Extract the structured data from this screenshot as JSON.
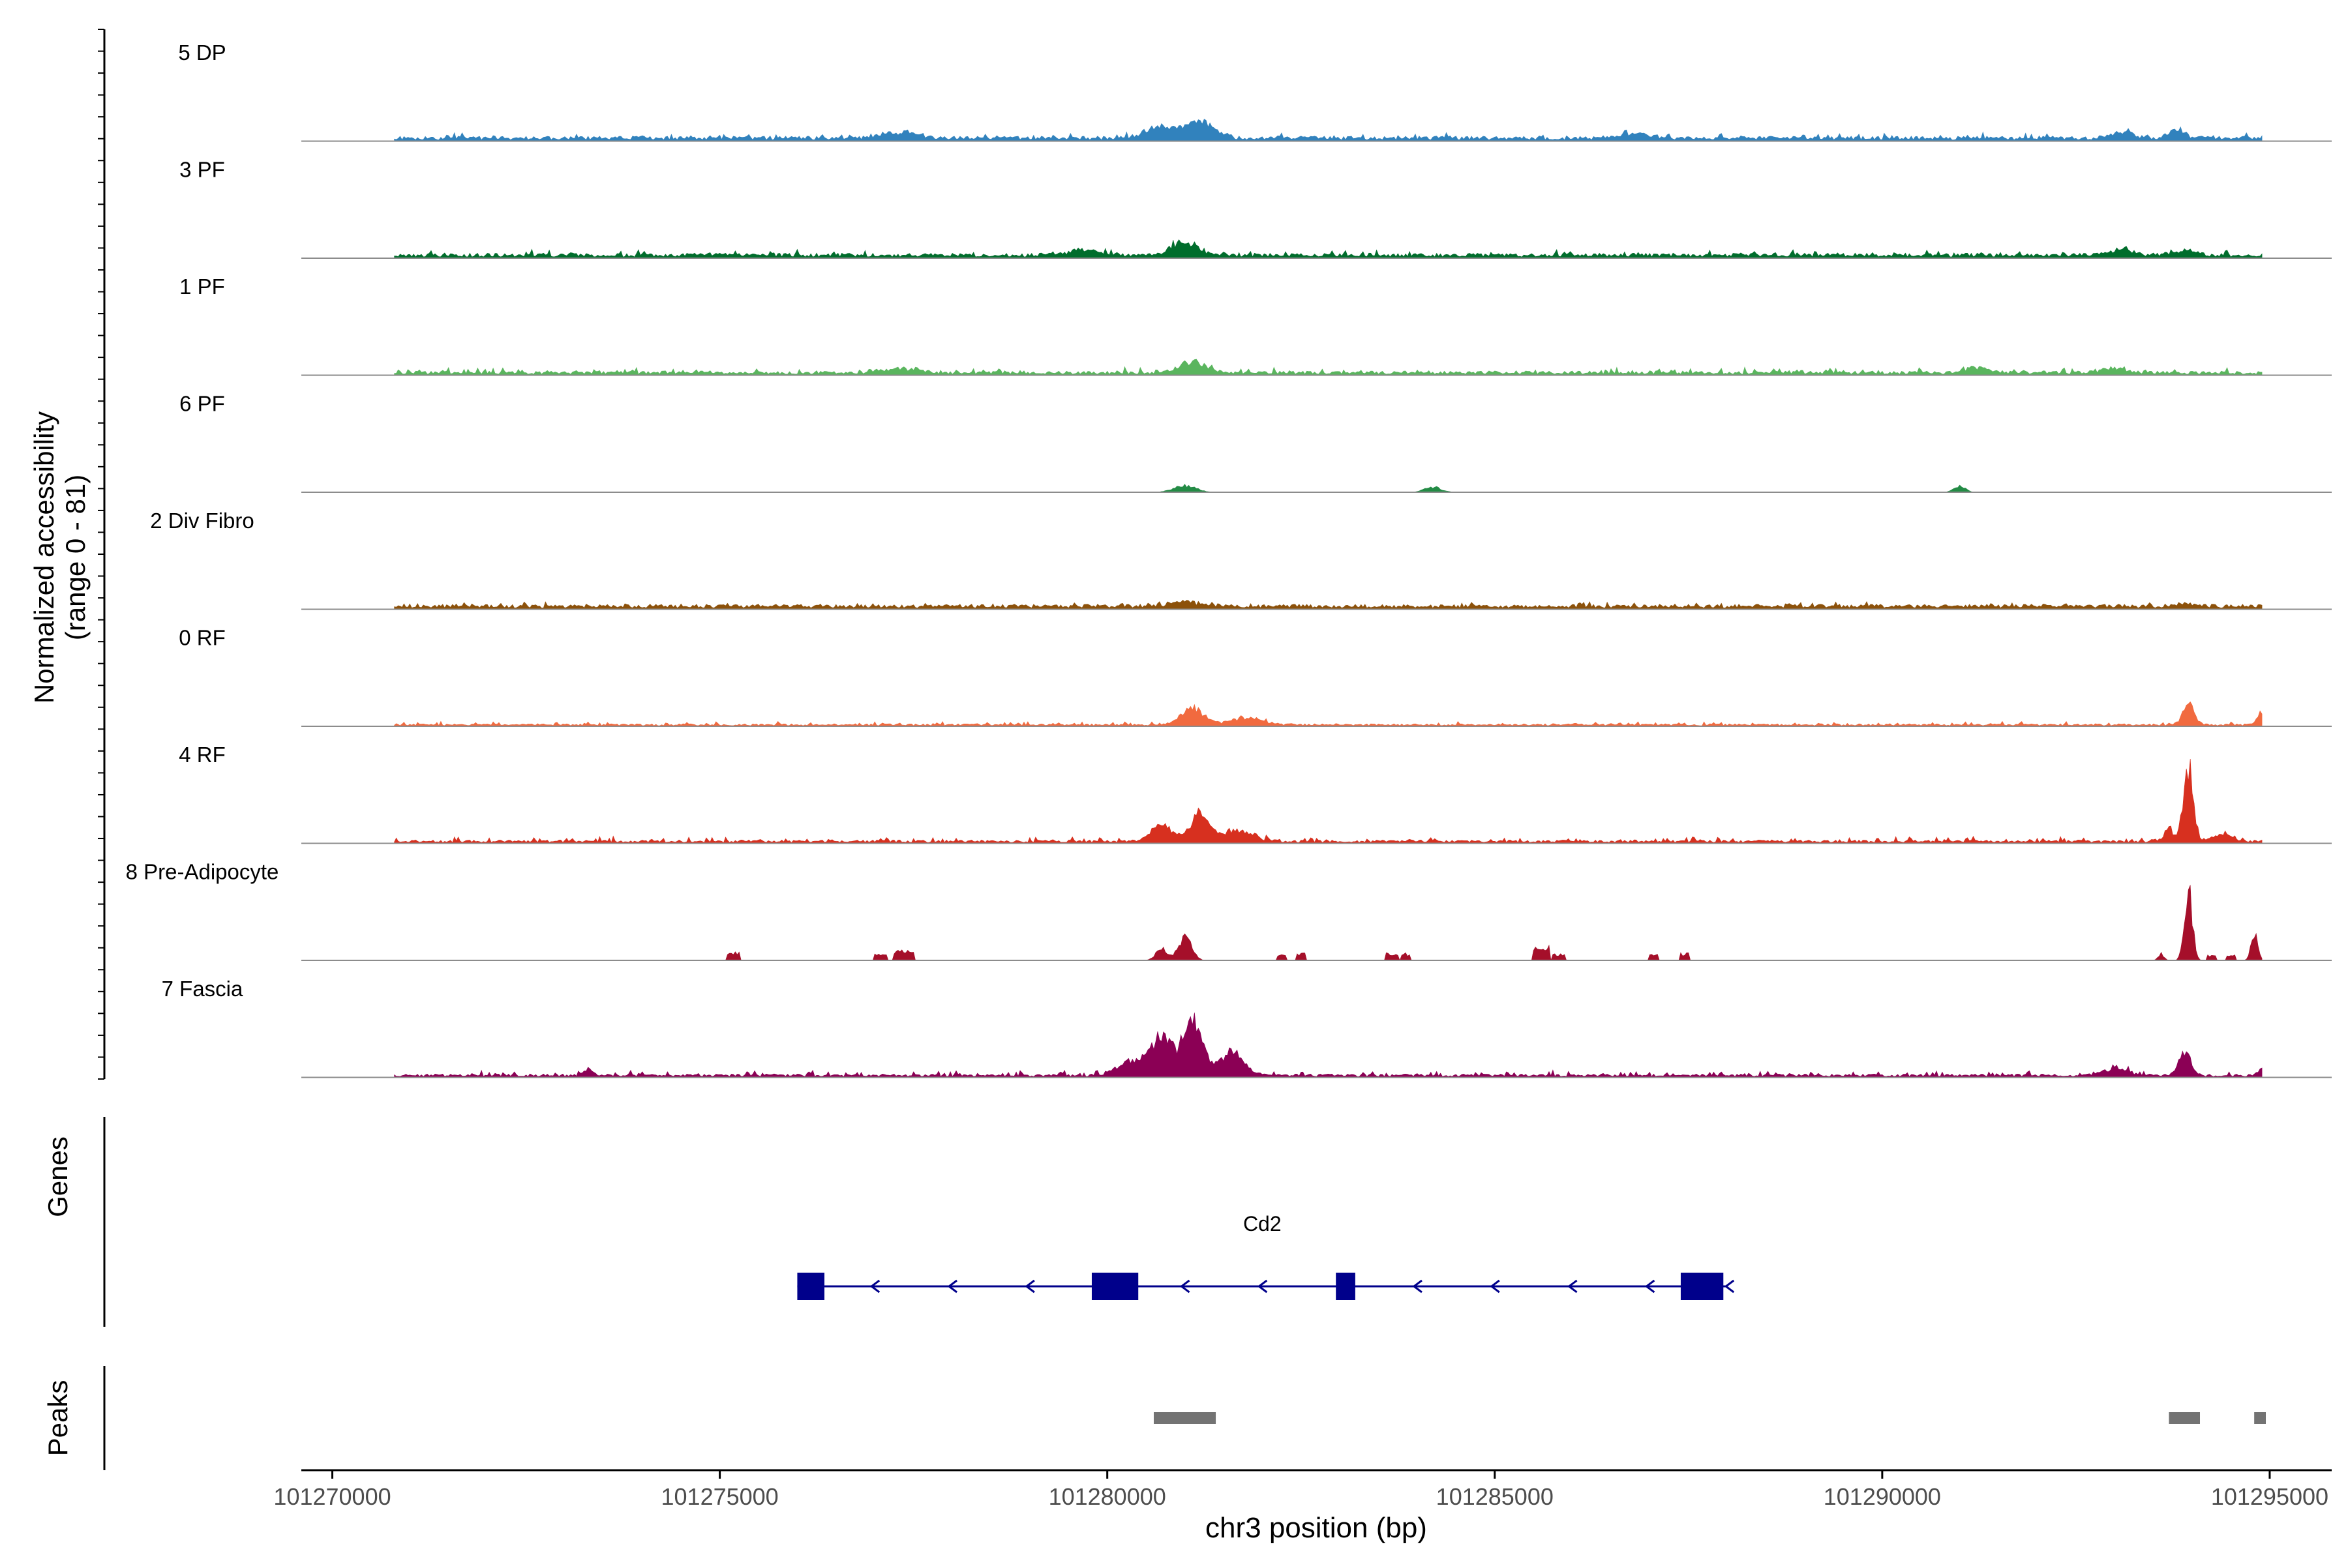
{
  "chart_data": {
    "type": "area",
    "title": "",
    "ylabel_line1": "Normalized accessibility",
    "ylabel_line2": "(range 0 - 81)",
    "y_range": [
      0,
      81
    ],
    "xlabel": "chr3 position (bp)",
    "xlim": [
      101269600,
      101295800
    ],
    "x_ticks": [
      101270000,
      101275000,
      101280000,
      101285000,
      101290000,
      101295000
    ],
    "x_tick_labels": [
      "101270000",
      "101275000",
      "101280000",
      "101285000",
      "101290000",
      "101295000"
    ],
    "tracks": [
      {
        "name": "5 DP",
        "color": "#3182bd",
        "base": 3,
        "noise": 3,
        "gaps": 0.25,
        "seed": 11,
        "start": 101270800,
        "end": 101294900,
        "peaks": [
          [
            101281200,
            13,
            250
          ],
          [
            101280700,
            8,
            300
          ],
          [
            101277300,
            4,
            300
          ],
          [
            101293800,
            6,
            150
          ],
          [
            101293100,
            4,
            200
          ],
          [
            101286800,
            3,
            300
          ]
        ]
      },
      {
        "name": "3 PF",
        "color": "#006d2c",
        "base": 3,
        "noise": 3,
        "gaps": 0.1,
        "seed": 23,
        "start": 101270800,
        "end": 101294900,
        "peaks": [
          [
            101281000,
            9,
            250
          ],
          [
            101279700,
            4,
            300
          ],
          [
            101293100,
            5,
            200
          ],
          [
            101293900,
            4,
            200
          ]
        ]
      },
      {
        "name": "1 PF",
        "color": "#5ab55e",
        "base": 2.5,
        "noise": 3,
        "gaps": 0.1,
        "seed": 37,
        "start": 101270800,
        "end": 101294900,
        "peaks": [
          [
            101281100,
            8,
            250
          ],
          [
            101277300,
            3,
            300
          ],
          [
            101291200,
            4,
            200
          ],
          [
            101293000,
            4,
            200
          ]
        ]
      },
      {
        "name": "6 PF",
        "color": "#238b45",
        "base": 2,
        "noise": 3,
        "gaps": 0.3,
        "seed": 41,
        "start": 101270800,
        "end": 101294900,
        "peaks": [
          [
            101281000,
            5,
            200
          ],
          [
            101291000,
            5,
            100
          ],
          [
            101284200,
            4,
            150
          ]
        ]
      },
      {
        "name": "2 Div Fibro",
        "color": "#8c510a",
        "base": 3,
        "noise": 2,
        "gaps": 0.15,
        "seed": 53,
        "start": 101270800,
        "end": 101294900,
        "peaks": [
          [
            101281000,
            3,
            300
          ],
          [
            101293900,
            2,
            150
          ]
        ]
      },
      {
        "name": "0 RF",
        "color": "#f16a3f",
        "base": 1.5,
        "noise": 2,
        "gaps": 0.1,
        "seed": 67,
        "start": 101270800,
        "end": 101294900,
        "peaks": [
          [
            101281100,
            13,
            200
          ],
          [
            101281800,
            5,
            300
          ],
          [
            101293950,
            17,
            100
          ],
          [
            101294900,
            10,
            80
          ]
        ]
      },
      {
        "name": "4 RF",
        "color": "#d7301f",
        "base": 2,
        "noise": 3,
        "gaps": 0.1,
        "seed": 79,
        "start": 101270800,
        "end": 101294900,
        "peaks": [
          [
            101281200,
            20,
            180
          ],
          [
            101280700,
            15,
            180
          ],
          [
            101281700,
            8,
            250
          ],
          [
            101293950,
            58,
            90
          ],
          [
            101293700,
            9,
            80
          ],
          [
            101294400,
            6,
            150
          ]
        ]
      },
      {
        "name": "8 Pre-Adipocyte",
        "color": "#a50f2a",
        "base": 0,
        "noise": 0,
        "gaps": 0,
        "seed": 83,
        "start": 101270800,
        "end": 101294900,
        "peaks": [
          [
            101281000,
            18,
            120
          ],
          [
            101280700,
            10,
            100
          ],
          [
            101293950,
            57,
            70
          ],
          [
            101294800,
            20,
            60
          ],
          [
            101293600,
            5,
            50
          ]
        ],
        "blocks": [
          [
            101275100,
            101275250,
            6
          ],
          [
            101277000,
            101277150,
            5
          ],
          [
            101277250,
            101277500,
            7
          ],
          [
            101282200,
            101282300,
            5
          ],
          [
            101282450,
            101282550,
            5
          ],
          [
            101283600,
            101283750,
            5
          ],
          [
            101283800,
            101283900,
            5
          ],
          [
            101285500,
            101285700,
            10
          ],
          [
            101285750,
            101285900,
            5
          ],
          [
            101287000,
            101287100,
            5
          ],
          [
            101287400,
            101287500,
            5
          ],
          [
            101294200,
            101294300,
            4
          ],
          [
            101294450,
            101294550,
            4
          ]
        ]
      },
      {
        "name": "7 Fascia",
        "color": "#8b0055",
        "base": 2,
        "noise": 3,
        "gaps": 0.05,
        "seed": 97,
        "start": 101270800,
        "end": 101294900,
        "peaks": [
          [
            101281100,
            40,
            180
          ],
          [
            101280700,
            28,
            200
          ],
          [
            101281600,
            18,
            220
          ],
          [
            101280300,
            10,
            250
          ],
          [
            101293900,
            19,
            100
          ],
          [
            101293000,
            5,
            250
          ],
          [
            101273300,
            4,
            100
          ],
          [
            101294900,
            6,
            60
          ]
        ]
      }
    ],
    "genes_label": "Genes",
    "gene": {
      "name": "Cd2",
      "start": 101276000,
      "end": 101288000,
      "strand": "-",
      "exons": [
        [
          101276000,
          101276350
        ],
        [
          101279800,
          101280400
        ],
        [
          101282950,
          101283200
        ],
        [
          101287400,
          101287950
        ]
      ],
      "color": "#00008b"
    },
    "peaks_label": "Peaks",
    "peaks": [
      [
        101280600,
        101281400
      ],
      [
        101293700,
        101294100
      ],
      [
        101294800,
        101294950
      ]
    ],
    "peak_color": "#737373"
  }
}
